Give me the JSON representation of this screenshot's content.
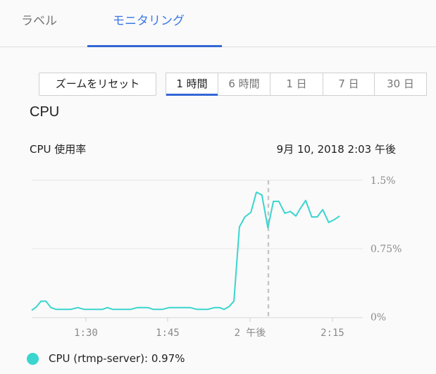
{
  "tabs": [
    {
      "label": "ラベル",
      "active": false
    },
    {
      "label": "モニタリング",
      "active": true
    }
  ],
  "toolbar": {
    "reset_zoom_label": "ズームをリセット",
    "ranges": [
      {
        "label": "1 時間",
        "active": true
      },
      {
        "label": "6 時間",
        "active": false
      },
      {
        "label": "1 日",
        "active": false
      },
      {
        "label": "7 日",
        "active": false
      },
      {
        "label": "30 日",
        "active": false
      }
    ]
  },
  "section": {
    "title": "CPU",
    "metric_label": "CPU 使用率",
    "timestamp": "9月 10, 2018 2:03 午後"
  },
  "legend": {
    "color": "#3ad5ce",
    "text": "CPU (rtmp-server): 0.97%"
  },
  "colors": {
    "accent": "#3367d6",
    "tab_active_text": "#3b78e7",
    "series": "#3ad5ce",
    "grid": "#e6e6e6",
    "axis_text": "#8a8a8a",
    "cursor": "#c8c8c8"
  },
  "chart_data": {
    "type": "line",
    "title": "CPU 使用率",
    "xlabel": "",
    "ylabel": "",
    "ylim": [
      0,
      1.5
    ],
    "y_ticks": [
      "0%",
      "0.75%",
      "1.5%"
    ],
    "x_ticks": [
      "1:30",
      "1:45",
      "2 午後",
      "2:15"
    ],
    "grid": true,
    "legend_position": "bottom",
    "cursor_time": "2:03",
    "series": [
      {
        "name": "CPU (rtmp-server)",
        "color": "#3ad5ce",
        "x_minutes_from_1:20": [
          0,
          0.9,
          1.7,
          2.6,
          3.5,
          4.5,
          7.1,
          8.4,
          9.6,
          12.9,
          13.8,
          14.8,
          18.0,
          19.3,
          21.2,
          22.2,
          23.8,
          25.1,
          28.9,
          30.2,
          32.1,
          33.4,
          34.3,
          35.1,
          36.0,
          36.9,
          37.9,
          38.9,
          40.0,
          41.0,
          42.0,
          43.1,
          44.1,
          45.1,
          46.2,
          47.2,
          48.2,
          49.0,
          50.0,
          51.1,
          52.1,
          53.1,
          54.2,
          55.2,
          56.2
        ],
        "values": [
          0.08,
          0.12,
          0.18,
          0.18,
          0.11,
          0.09,
          0.09,
          0.11,
          0.09,
          0.09,
          0.11,
          0.09,
          0.09,
          0.11,
          0.11,
          0.09,
          0.09,
          0.11,
          0.11,
          0.09,
          0.09,
          0.11,
          0.11,
          0.09,
          0.12,
          0.18,
          0.99,
          1.1,
          1.15,
          1.37,
          1.34,
          0.98,
          1.27,
          1.27,
          1.14,
          1.16,
          1.11,
          1.19,
          1.28,
          1.1,
          1.1,
          1.18,
          1.04,
          1.07,
          1.11
        ]
      }
    ]
  }
}
